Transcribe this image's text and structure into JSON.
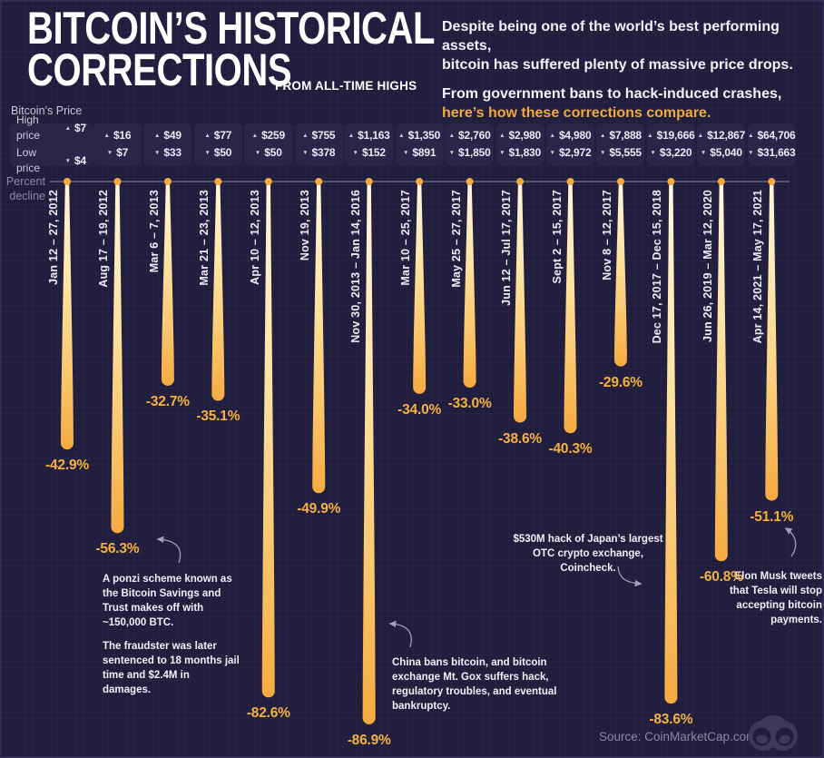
{
  "colors": {
    "background": "#211d3d",
    "accent_orange": "#f5a93f",
    "pct_label": "#f5b23f",
    "drip_top": "#fff6df",
    "drip_bottom": "#f6ab41",
    "cell_bg": "#2b2649",
    "text_light": "#f3f1f9",
    "muted": "#8d89a4"
  },
  "header": {
    "title_line1": "BITCOIN’S HISTORICAL",
    "title_line2": "CORRECTIONS",
    "title_suffix": "FROM ALL-TIME HIGHS",
    "intro_p1_l1": "Despite being one of the world’s best performing assets,",
    "intro_p1_l2": "bitcoin has suffered plenty of massive price drops.",
    "intro_p2_l1": "From government bans to hack-induced crashes,",
    "intro_p2_highlight": "here’s how these corrections compare."
  },
  "price_table": {
    "label": "Bitcoin’s Price",
    "high_label": "High price",
    "low_label": "Low price",
    "up_arrow": "▲",
    "down_arrow": "▼"
  },
  "axis": {
    "label_line1": "Percent",
    "label_line2": "decline"
  },
  "chart_data": {
    "type": "bar",
    "style": "hanging-drip",
    "title": "Bitcoin’s Historical Corrections from All-Time Highs",
    "ylabel": "Percent decline",
    "ylim": [
      -90,
      0
    ],
    "categories": [
      "Jan 12 – 27, 2012",
      "Aug 17 – 19, 2012",
      "Mar 6 – 7, 2013",
      "Mar 21 – 23, 2013",
      "Apr 10 – 12, 2013",
      "Nov 19, 2013",
      "Nov 30, 2013 – Jan 14, 2016",
      "Mar 10 – 25, 2017",
      "May 25 – 27, 2017",
      "Jun 12 – Jul 17, 2017",
      "Sept 2 – 15, 2017",
      "Nov 8 – 12, 2017",
      "Dec 17, 2017 – Dec 15, 2018",
      "Jun 26, 2019 – Mar 12, 2020",
      "Apr 14, 2021 – May 17, 2021"
    ],
    "values": [
      -42.9,
      -56.3,
      -32.7,
      -35.1,
      -82.6,
      -49.9,
      -86.9,
      -34.0,
      -33.0,
      -38.6,
      -40.3,
      -29.6,
      -83.6,
      -60.8,
      -51.1
    ],
    "value_labels": [
      "-42.9%",
      "-56.3%",
      "-32.7%",
      "-35.1%",
      "-82.6%",
      "-49.9%",
      "-86.9%",
      "-34.0%",
      "-33.0%",
      "-38.6%",
      "-40.3%",
      "-29.6%",
      "-83.6%",
      "-60.8%",
      "-51.1%"
    ],
    "high_prices": [
      "$7",
      "$16",
      "$49",
      "$77",
      "$259",
      "$755",
      "$1,163",
      "$1,350",
      "$2,760",
      "$2,980",
      "$4,980",
      "$7,888",
      "$19,666",
      "$12,867",
      "$64,706"
    ],
    "low_prices": [
      "$4",
      "$7",
      "$33",
      "$50",
      "$50",
      "$378",
      "$152",
      "$891",
      "$1,850",
      "$1,830",
      "$2,972",
      "$5,555",
      "$3,220",
      "$5,040",
      "$31,663"
    ]
  },
  "annotations": {
    "ponzi": {
      "p1": "A ponzi scheme known as the Bitcoin Savings and Trust makes off with ~150,000 BTC.",
      "p2": "The fraudster was later sentenced to 18 months jail time and $2.4M in damages."
    },
    "china": {
      "text": "China bans bitcoin, and bitcoin exchange Mt. Gox suffers hack, regulatory troubles, and eventual bankruptcy."
    },
    "coincheck": {
      "text": "$530M hack of Japan’s largest OTC crypto exchange, Coincheck."
    },
    "elon": {
      "text": "Elon Musk tweets that Tesla will stop accepting bitcoin payments."
    }
  },
  "source": "Source: CoinMarketCap.com",
  "logo": "bull-bear-emblem"
}
